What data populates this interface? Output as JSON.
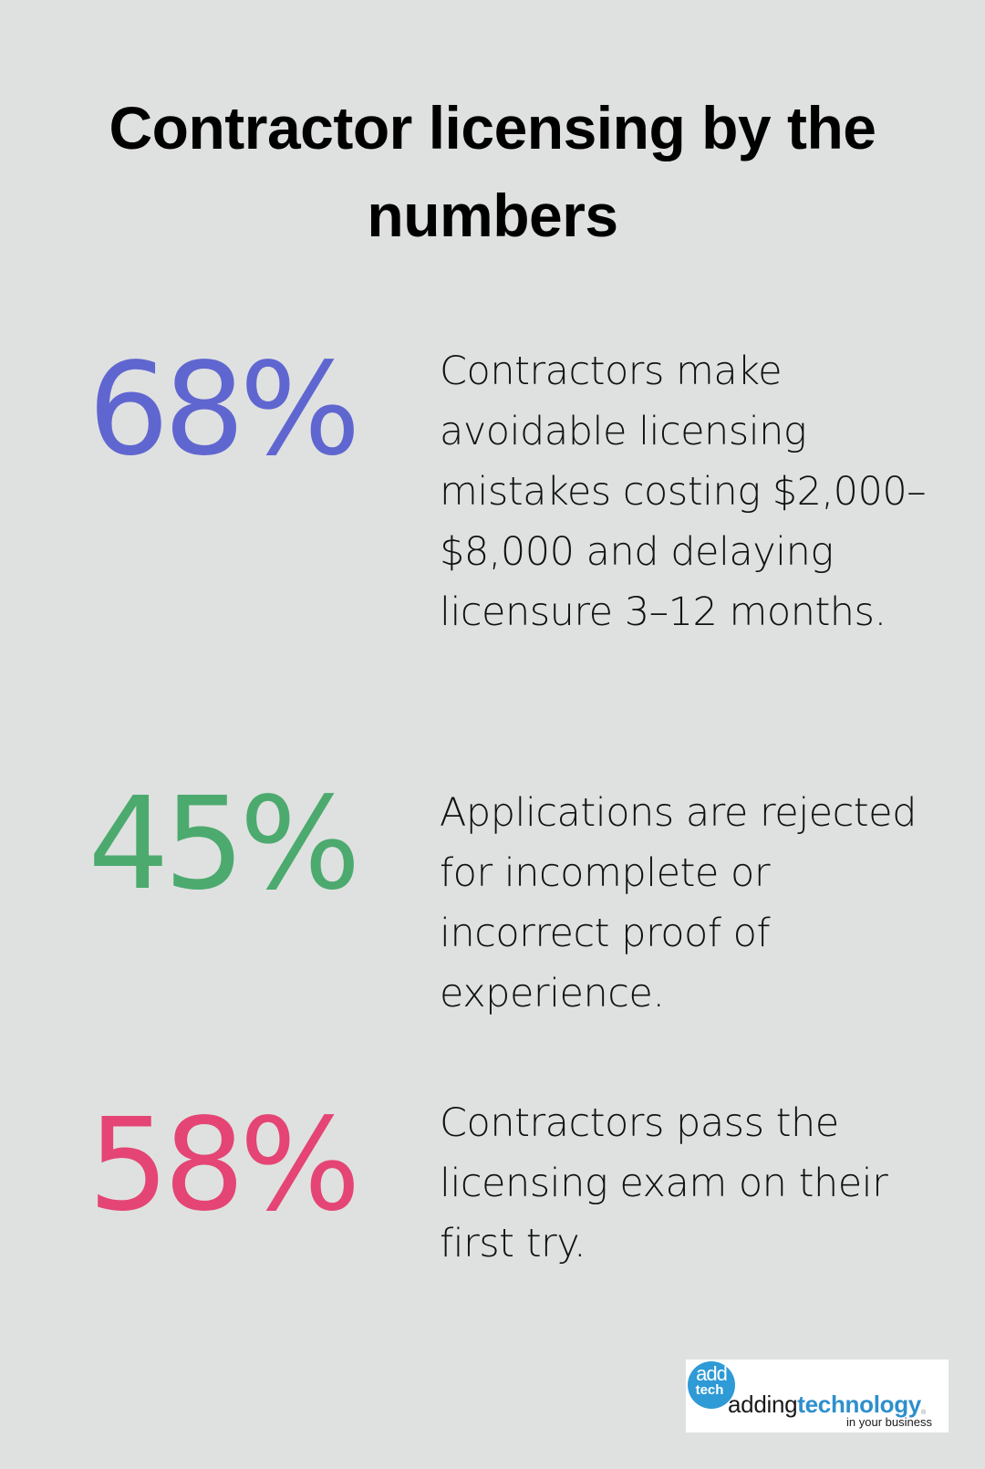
{
  "header": {
    "title": "Contractor licensing by the numbers"
  },
  "stats": [
    {
      "value": "68%",
      "color": "#6066d0",
      "description": "Contractors make avoidable licensing mistakes costing $2,000–$8,000 and delaying licensure 3–12 months."
    },
    {
      "value": "45%",
      "color": "#4caa6e",
      "description": "Applications are rejected for incomplete or incorrect proof of experience."
    },
    {
      "value": "58%",
      "color": "#e44574",
      "description": "Contractors pass the licensing exam on their first try."
    }
  ],
  "logo": {
    "badge_top": "add",
    "badge_bottom": "tech",
    "wordmark_light": "adding",
    "wordmark_bold": "technology",
    "registered": "®",
    "tagline": "in your business",
    "brand_color": "#2e9ad6"
  },
  "colors": {
    "background": "#dfe1e0",
    "title": "#000000",
    "body_text": "#111111"
  }
}
